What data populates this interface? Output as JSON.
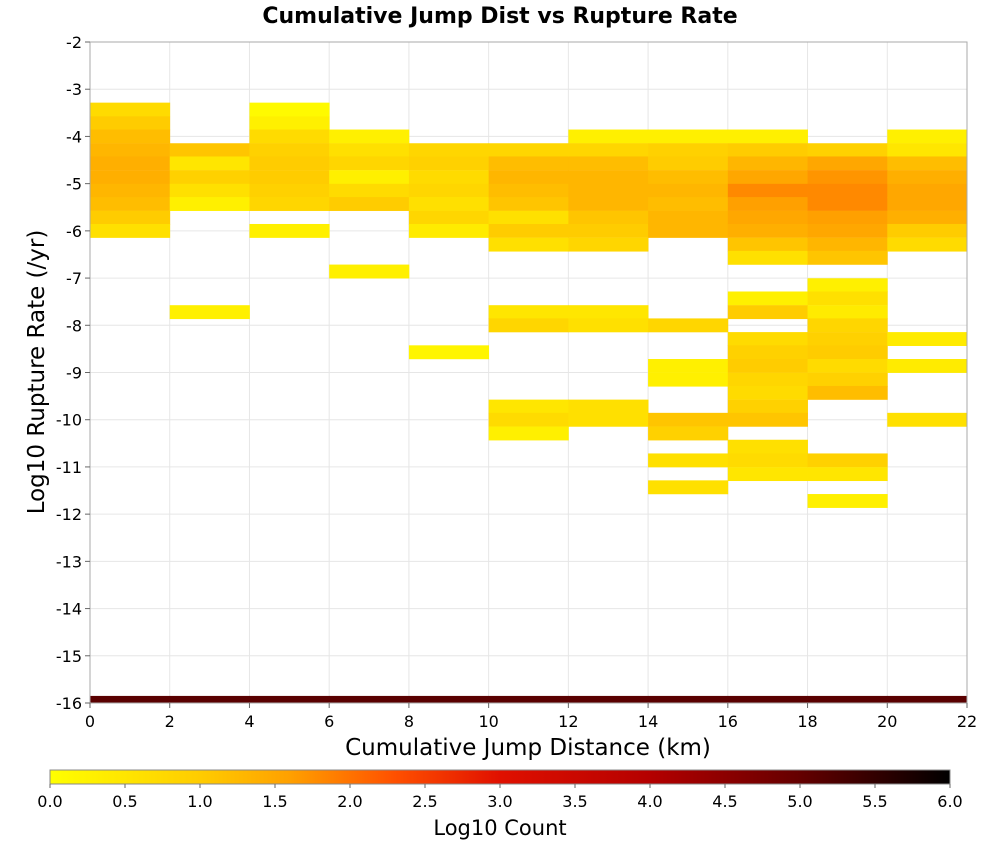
{
  "chart_data": {
    "type": "heatmap",
    "title": "Cumulative Jump Dist vs Rupture Rate",
    "xlabel": "Cumulative Jump Distance (km)",
    "ylabel": "Log10 Rupture Rate (/yr)",
    "xlim": [
      0,
      22
    ],
    "ylim": [
      -16,
      -2
    ],
    "x_ticks": [
      "0",
      "2",
      "4",
      "6",
      "8",
      "10",
      "12",
      "14",
      "16",
      "18",
      "20",
      "22"
    ],
    "y_ticks": [
      "-2",
      "-3",
      "-4",
      "-5",
      "-6",
      "-7",
      "-8",
      "-9",
      "-10",
      "-11",
      "-12",
      "-13",
      "-14",
      "-15",
      "-16"
    ],
    "grid": true,
    "x_bin_width": 2,
    "y_bin_height": 0.2857,
    "colorbar": {
      "label": "Log10 Count",
      "range": [
        0,
        6
      ],
      "ticks": [
        "0.0",
        "0.5",
        "1.0",
        "1.5",
        "2.0",
        "2.5",
        "3.0",
        "3.5",
        "4.0",
        "4.5",
        "5.0",
        "5.5",
        "6.0"
      ],
      "stops": [
        {
          "v": 0.0,
          "color": "#ffff00"
        },
        {
          "v": 1.0,
          "color": "#ffcc00"
        },
        {
          "v": 1.6,
          "color": "#ffa000"
        },
        {
          "v": 2.3,
          "color": "#ff5000"
        },
        {
          "v": 3.0,
          "color": "#e01000"
        },
        {
          "v": 4.0,
          "color": "#b40000"
        },
        {
          "v": 5.0,
          "color": "#640000"
        },
        {
          "v": 6.0,
          "color": "#000000"
        }
      ]
    },
    "cells": [
      {
        "x": 0,
        "y": -3.57,
        "v": 0.7
      },
      {
        "x": 0,
        "y": -3.86,
        "v": 1.0
      },
      {
        "x": 0,
        "y": -4.14,
        "v": 1.2
      },
      {
        "x": 0,
        "y": -4.43,
        "v": 1.3
      },
      {
        "x": 0,
        "y": -4.71,
        "v": 1.4
      },
      {
        "x": 0,
        "y": -5.0,
        "v": 1.4
      },
      {
        "x": 0,
        "y": -5.29,
        "v": 1.3
      },
      {
        "x": 0,
        "y": -5.57,
        "v": 1.2
      },
      {
        "x": 0,
        "y": -5.86,
        "v": 1.0
      },
      {
        "x": 0,
        "y": -6.14,
        "v": 0.6
      },
      {
        "x": 2,
        "y": -4.43,
        "v": 1.1
      },
      {
        "x": 2,
        "y": -4.71,
        "v": 0.5
      },
      {
        "x": 2,
        "y": -5.0,
        "v": 0.9
      },
      {
        "x": 2,
        "y": -5.29,
        "v": 0.6
      },
      {
        "x": 2,
        "y": -5.57,
        "v": 0.3
      },
      {
        "x": 2,
        "y": -7.86,
        "v": 0.3
      },
      {
        "x": 4,
        "y": -3.57,
        "v": 0.1
      },
      {
        "x": 4,
        "y": -3.86,
        "v": 0.3
      },
      {
        "x": 4,
        "y": -4.14,
        "v": 0.7
      },
      {
        "x": 4,
        "y": -4.43,
        "v": 0.9
      },
      {
        "x": 4,
        "y": -4.71,
        "v": 1.0
      },
      {
        "x": 4,
        "y": -5.0,
        "v": 1.0
      },
      {
        "x": 4,
        "y": -5.29,
        "v": 0.9
      },
      {
        "x": 4,
        "y": -5.57,
        "v": 0.8
      },
      {
        "x": 4,
        "y": -6.14,
        "v": 0.3
      },
      {
        "x": 6,
        "y": -4.14,
        "v": 0.3
      },
      {
        "x": 6,
        "y": -4.43,
        "v": 0.6
      },
      {
        "x": 6,
        "y": -4.71,
        "v": 0.8
      },
      {
        "x": 6,
        "y": -5.0,
        "v": 0.3
      },
      {
        "x": 6,
        "y": -5.29,
        "v": 0.7
      },
      {
        "x": 6,
        "y": -5.57,
        "v": 1.0
      },
      {
        "x": 6,
        "y": -7.0,
        "v": 0.3
      },
      {
        "x": 8,
        "y": -4.43,
        "v": 0.8
      },
      {
        "x": 8,
        "y": -4.71,
        "v": 0.9
      },
      {
        "x": 8,
        "y": -5.0,
        "v": 0.7
      },
      {
        "x": 8,
        "y": -5.29,
        "v": 0.8
      },
      {
        "x": 8,
        "y": -5.57,
        "v": 0.6
      },
      {
        "x": 8,
        "y": -5.86,
        "v": 0.8
      },
      {
        "x": 8,
        "y": -6.14,
        "v": 0.4
      },
      {
        "x": 8,
        "y": -8.71,
        "v": 0.2
      },
      {
        "x": 10,
        "y": -4.43,
        "v": 0.8
      },
      {
        "x": 10,
        "y": -4.71,
        "v": 1.2
      },
      {
        "x": 10,
        "y": -5.0,
        "v": 1.3
      },
      {
        "x": 10,
        "y": -5.29,
        "v": 1.2
      },
      {
        "x": 10,
        "y": -5.57,
        "v": 1.1
      },
      {
        "x": 10,
        "y": -5.86,
        "v": 0.6
      },
      {
        "x": 10,
        "y": -6.14,
        "v": 1.0
      },
      {
        "x": 10,
        "y": -6.43,
        "v": 0.6
      },
      {
        "x": 10,
        "y": -7.86,
        "v": 0.5
      },
      {
        "x": 10,
        "y": -8.14,
        "v": 0.8
      },
      {
        "x": 10,
        "y": -9.86,
        "v": 0.5
      },
      {
        "x": 10,
        "y": -10.14,
        "v": 0.7
      },
      {
        "x": 10,
        "y": -10.43,
        "v": 0.3
      },
      {
        "x": 12,
        "y": -4.14,
        "v": 0.3
      },
      {
        "x": 12,
        "y": -4.43,
        "v": 0.8
      },
      {
        "x": 12,
        "y": -4.71,
        "v": 1.2
      },
      {
        "x": 12,
        "y": -5.0,
        "v": 1.3
      },
      {
        "x": 12,
        "y": -5.29,
        "v": 1.3
      },
      {
        "x": 12,
        "y": -5.57,
        "v": 1.3
      },
      {
        "x": 12,
        "y": -5.86,
        "v": 1.1
      },
      {
        "x": 12,
        "y": -6.14,
        "v": 1.0
      },
      {
        "x": 12,
        "y": -6.43,
        "v": 0.8
      },
      {
        "x": 12,
        "y": -7.86,
        "v": 0.5
      },
      {
        "x": 12,
        "y": -8.14,
        "v": 0.6
      },
      {
        "x": 12,
        "y": -9.86,
        "v": 0.6
      },
      {
        "x": 12,
        "y": -10.14,
        "v": 0.6
      },
      {
        "x": 14,
        "y": -4.14,
        "v": 0.3
      },
      {
        "x": 14,
        "y": -4.43,
        "v": 0.9
      },
      {
        "x": 14,
        "y": -4.71,
        "v": 1.0
      },
      {
        "x": 14,
        "y": -5.0,
        "v": 1.2
      },
      {
        "x": 14,
        "y": -5.29,
        "v": 1.3
      },
      {
        "x": 14,
        "y": -5.57,
        "v": 1.2
      },
      {
        "x": 14,
        "y": -5.86,
        "v": 1.3
      },
      {
        "x": 14,
        "y": -6.14,
        "v": 1.3
      },
      {
        "x": 14,
        "y": -8.14,
        "v": 0.8
      },
      {
        "x": 14,
        "y": -9.0,
        "v": 0.3
      },
      {
        "x": 14,
        "y": -9.29,
        "v": 0.3
      },
      {
        "x": 14,
        "y": -10.14,
        "v": 1.1
      },
      {
        "x": 14,
        "y": -10.43,
        "v": 0.9
      },
      {
        "x": 14,
        "y": -11.0,
        "v": 0.6
      },
      {
        "x": 14,
        "y": -11.57,
        "v": 0.6
      },
      {
        "x": 16,
        "y": -4.14,
        "v": 0.3
      },
      {
        "x": 16,
        "y": -4.43,
        "v": 1.0
      },
      {
        "x": 16,
        "y": -4.71,
        "v": 1.3
      },
      {
        "x": 16,
        "y": -5.0,
        "v": 1.5
      },
      {
        "x": 16,
        "y": -5.29,
        "v": 1.8
      },
      {
        "x": 16,
        "y": -5.57,
        "v": 1.6
      },
      {
        "x": 16,
        "y": -5.86,
        "v": 1.5
      },
      {
        "x": 16,
        "y": -6.14,
        "v": 1.4
      },
      {
        "x": 16,
        "y": -6.43,
        "v": 1.1
      },
      {
        "x": 16,
        "y": -6.71,
        "v": 0.6
      },
      {
        "x": 16,
        "y": -7.57,
        "v": 0.3
      },
      {
        "x": 16,
        "y": -7.86,
        "v": 1.0
      },
      {
        "x": 16,
        "y": -8.43,
        "v": 0.7
      },
      {
        "x": 16,
        "y": -8.71,
        "v": 0.9
      },
      {
        "x": 16,
        "y": -9.0,
        "v": 1.0
      },
      {
        "x": 16,
        "y": -9.29,
        "v": 0.8
      },
      {
        "x": 16,
        "y": -9.57,
        "v": 0.7
      },
      {
        "x": 16,
        "y": -9.86,
        "v": 0.9
      },
      {
        "x": 16,
        "y": -10.14,
        "v": 1.1
      },
      {
        "x": 16,
        "y": -10.71,
        "v": 0.6
      },
      {
        "x": 16,
        "y": -11.0,
        "v": 0.7
      },
      {
        "x": 16,
        "y": -11.29,
        "v": 0.5
      },
      {
        "x": 18,
        "y": -4.43,
        "v": 0.9
      },
      {
        "x": 18,
        "y": -4.71,
        "v": 1.5
      },
      {
        "x": 18,
        "y": -5.0,
        "v": 1.7
      },
      {
        "x": 18,
        "y": -5.29,
        "v": 1.8
      },
      {
        "x": 18,
        "y": -5.57,
        "v": 1.8
      },
      {
        "x": 18,
        "y": -5.86,
        "v": 1.6
      },
      {
        "x": 18,
        "y": -6.14,
        "v": 1.5
      },
      {
        "x": 18,
        "y": -6.43,
        "v": 1.3
      },
      {
        "x": 18,
        "y": -6.71,
        "v": 1.1
      },
      {
        "x": 18,
        "y": -7.29,
        "v": 0.3
      },
      {
        "x": 18,
        "y": -7.57,
        "v": 0.6
      },
      {
        "x": 18,
        "y": -7.86,
        "v": 0.4
      },
      {
        "x": 18,
        "y": -8.14,
        "v": 0.8
      },
      {
        "x": 18,
        "y": -8.43,
        "v": 0.9
      },
      {
        "x": 18,
        "y": -8.71,
        "v": 1.0
      },
      {
        "x": 18,
        "y": -9.0,
        "v": 0.7
      },
      {
        "x": 18,
        "y": -9.29,
        "v": 0.9
      },
      {
        "x": 18,
        "y": -9.57,
        "v": 1.2
      },
      {
        "x": 18,
        "y": -11.0,
        "v": 0.9
      },
      {
        "x": 18,
        "y": -11.29,
        "v": 0.5
      },
      {
        "x": 18,
        "y": -11.86,
        "v": 0.3
      },
      {
        "x": 20,
        "y": -4.14,
        "v": 0.3
      },
      {
        "x": 20,
        "y": -4.43,
        "v": 0.5
      },
      {
        "x": 20,
        "y": -4.71,
        "v": 1.2
      },
      {
        "x": 20,
        "y": -5.0,
        "v": 1.4
      },
      {
        "x": 20,
        "y": -5.29,
        "v": 1.5
      },
      {
        "x": 20,
        "y": -5.57,
        "v": 1.5
      },
      {
        "x": 20,
        "y": -5.86,
        "v": 1.4
      },
      {
        "x": 20,
        "y": -6.14,
        "v": 1.0
      },
      {
        "x": 20,
        "y": -6.43,
        "v": 0.7
      },
      {
        "x": 20,
        "y": -8.43,
        "v": 0.4
      },
      {
        "x": 20,
        "y": -9.0,
        "v": 0.4
      },
      {
        "x": 20,
        "y": -10.14,
        "v": 0.6
      },
      {
        "x": 0,
        "y": -16.0,
        "v": 5.1
      },
      {
        "x": 2,
        "y": -16.0,
        "v": 5.1
      },
      {
        "x": 4,
        "y": -16.0,
        "v": 5.1
      },
      {
        "x": 6,
        "y": -16.0,
        "v": 5.1
      },
      {
        "x": 8,
        "y": -16.0,
        "v": 5.1
      },
      {
        "x": 10,
        "y": -16.0,
        "v": 5.1
      },
      {
        "x": 12,
        "y": -16.0,
        "v": 5.1
      },
      {
        "x": 14,
        "y": -16.0,
        "v": 5.1
      },
      {
        "x": 16,
        "y": -16.0,
        "v": 5.1
      },
      {
        "x": 18,
        "y": -16.0,
        "v": 5.1
      },
      {
        "x": 20,
        "y": -16.0,
        "v": 5.1
      }
    ]
  }
}
